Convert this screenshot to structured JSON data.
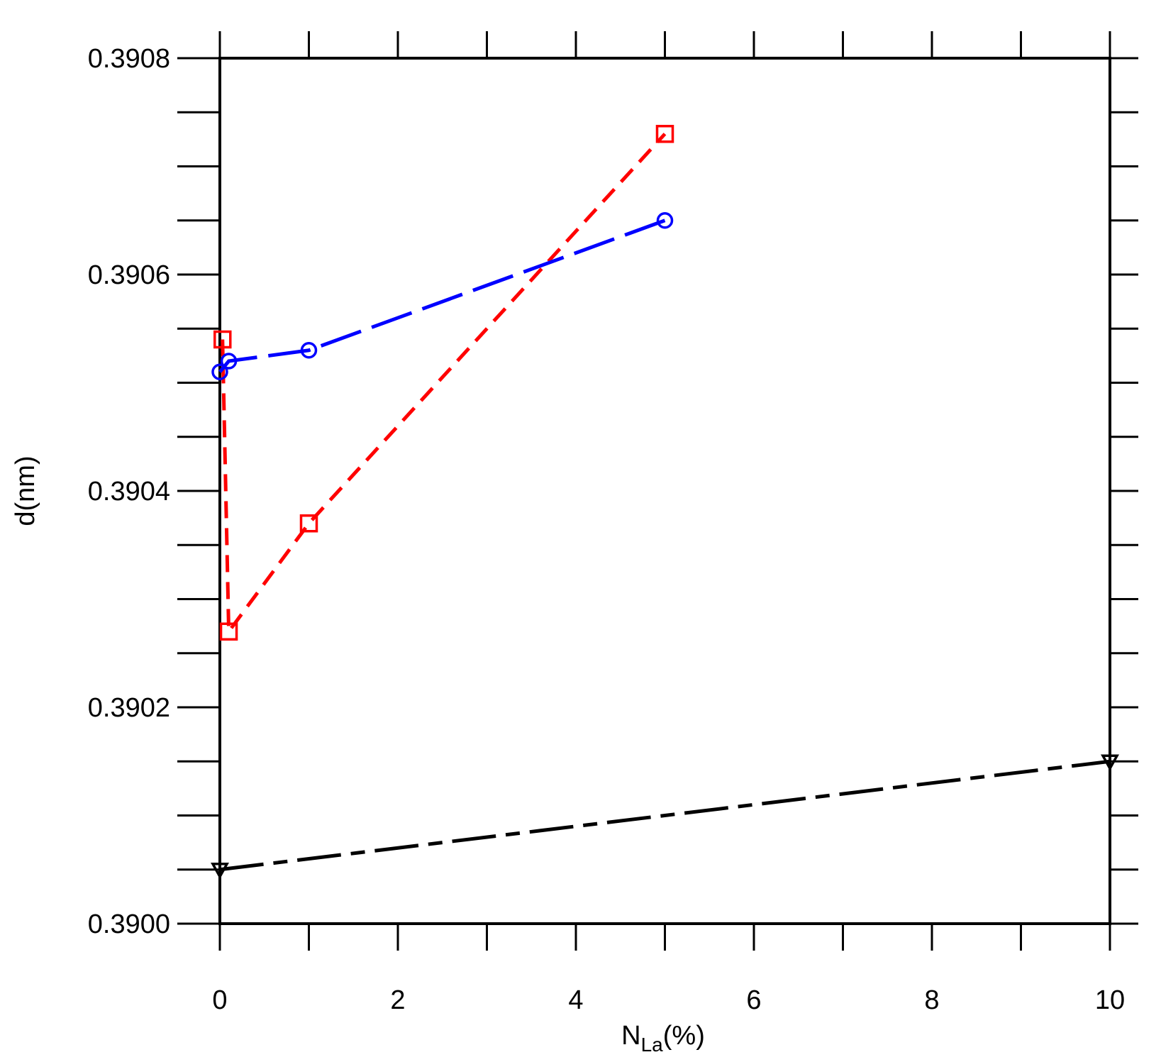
{
  "chart_data": {
    "type": "line",
    "xlabel": "N",
    "xlabel_subscript": "La",
    "xlabel_suffix": "(%)",
    "ylabel": "d(nm)",
    "xlim": [
      0,
      10
    ],
    "ylim": [
      0.39,
      0.3908
    ],
    "x_ticks": [
      0,
      2,
      4,
      6,
      8,
      10
    ],
    "x_tick_labels": [
      "0",
      "2",
      "4",
      "6",
      "8",
      "10"
    ],
    "x_minor_step": 1,
    "y_ticks": [
      0.39,
      0.3902,
      0.3904,
      0.3906,
      0.3908
    ],
    "y_tick_labels": [
      "0.3900",
      "0.3902",
      "0.3904",
      "0.3906",
      "0.3908"
    ],
    "y_minor_step": 5e-05,
    "grid": false,
    "series": [
      {
        "color": "#ff0000",
        "marker": "square",
        "dash": "short-dash",
        "x": [
          0.03,
          0.1,
          1.0,
          5.0
        ],
        "y": [
          0.39054,
          0.39027,
          0.39037,
          0.39073
        ]
      },
      {
        "color": "#0000ff",
        "marker": "circle",
        "dash": "long-dash",
        "x": [
          0.0,
          0.1,
          1.0,
          5.0
        ],
        "y": [
          0.39051,
          0.39052,
          0.39053,
          0.39065
        ]
      },
      {
        "color": "#000000",
        "marker": "triangle-down",
        "dash": "long-short-dash",
        "x": [
          0.0,
          10.0
        ],
        "y": [
          0.39005,
          0.39015
        ]
      }
    ]
  }
}
